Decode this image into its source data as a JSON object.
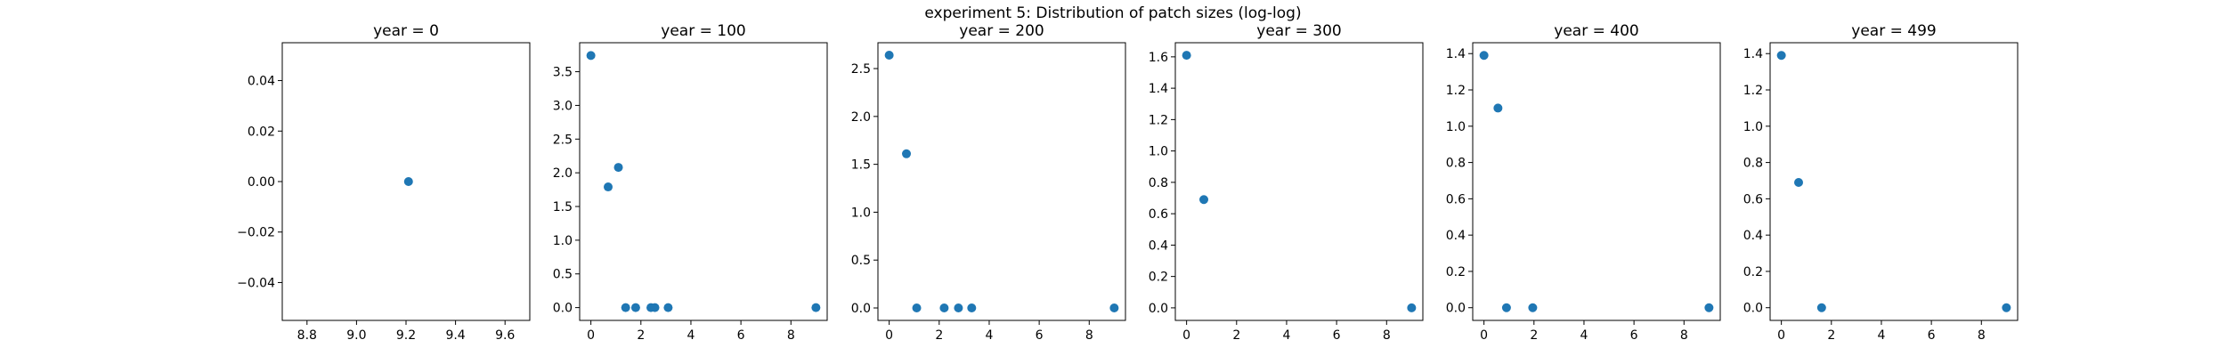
{
  "suptitle": "experiment 5: Distribution of patch sizes (log-log)",
  "colors": {
    "marker": "#1f77b4",
    "axes": "#000000"
  },
  "chart_data": [
    {
      "type": "scatter",
      "title": "year = 0",
      "xlim": [
        8.7,
        9.7
      ],
      "ylim": [
        -0.055,
        0.055
      ],
      "xticks": [
        8.8,
        9.0,
        9.2,
        9.4,
        9.6
      ],
      "xtick_labels": [
        "8.8",
        "9.0",
        "9.2",
        "9.4",
        "9.6"
      ],
      "yticks": [
        -0.04,
        -0.02,
        0.0,
        0.02,
        0.04
      ],
      "ytick_labels": [
        "−0.04",
        "−0.02",
        "0.00",
        "0.02",
        "0.04"
      ],
      "points": [
        [
          9.21,
          0.0
        ]
      ]
    },
    {
      "type": "scatter",
      "title": "year = 100",
      "xlim": [
        -0.45,
        9.45
      ],
      "ylim": [
        -0.19,
        3.93
      ],
      "xticks": [
        0,
        2,
        4,
        6,
        8
      ],
      "xtick_labels": [
        "0",
        "2",
        "4",
        "6",
        "8"
      ],
      "yticks": [
        0.0,
        0.5,
        1.0,
        1.5,
        2.0,
        2.5,
        3.0,
        3.5
      ],
      "ytick_labels": [
        "0.0",
        "0.5",
        "1.0",
        "1.5",
        "2.0",
        "2.5",
        "3.0",
        "3.5"
      ],
      "points": [
        [
          0.0,
          3.74
        ],
        [
          0.69,
          1.79
        ],
        [
          1.1,
          2.08
        ],
        [
          1.39,
          0.0
        ],
        [
          1.79,
          0.0
        ],
        [
          2.4,
          0.0
        ],
        [
          2.56,
          0.0
        ],
        [
          3.09,
          0.0
        ],
        [
          9.0,
          0.0
        ]
      ]
    },
    {
      "type": "scatter",
      "title": "year = 200",
      "xlim": [
        -0.45,
        9.45
      ],
      "ylim": [
        -0.13,
        2.77
      ],
      "xticks": [
        0,
        2,
        4,
        6,
        8
      ],
      "xtick_labels": [
        "0",
        "2",
        "4",
        "6",
        "8"
      ],
      "yticks": [
        0.0,
        0.5,
        1.0,
        1.5,
        2.0,
        2.5
      ],
      "ytick_labels": [
        "0.0",
        "0.5",
        "1.0",
        "1.5",
        "2.0",
        "2.5"
      ],
      "points": [
        [
          0.0,
          2.64
        ],
        [
          0.69,
          1.61
        ],
        [
          1.1,
          0.0
        ],
        [
          2.2,
          0.0
        ],
        [
          2.77,
          0.0
        ],
        [
          3.3,
          0.0
        ],
        [
          9.0,
          0.0
        ]
      ]
    },
    {
      "type": "scatter",
      "title": "year = 300",
      "xlim": [
        -0.45,
        9.45
      ],
      "ylim": [
        -0.08,
        1.69
      ],
      "xticks": [
        0,
        2,
        4,
        6,
        8
      ],
      "xtick_labels": [
        "0",
        "2",
        "4",
        "6",
        "8"
      ],
      "yticks": [
        0.0,
        0.2,
        0.4,
        0.6,
        0.8,
        1.0,
        1.2,
        1.4,
        1.6
      ],
      "ytick_labels": [
        "0.0",
        "0.2",
        "0.4",
        "0.6",
        "0.8",
        "1.0",
        "1.2",
        "1.4",
        "1.6"
      ],
      "points": [
        [
          0.0,
          1.61
        ],
        [
          0.69,
          0.69
        ],
        [
          9.0,
          0.0
        ]
      ]
    },
    {
      "type": "scatter",
      "title": "year = 400",
      "xlim": [
        -0.45,
        9.45
      ],
      "ylim": [
        -0.07,
        1.46
      ],
      "xticks": [
        0,
        2,
        4,
        6,
        8
      ],
      "xtick_labels": [
        "0",
        "2",
        "4",
        "6",
        "8"
      ],
      "yticks": [
        0.0,
        0.2,
        0.4,
        0.6,
        0.8,
        1.0,
        1.2,
        1.4
      ],
      "ytick_labels": [
        "0.0",
        "0.2",
        "0.4",
        "0.6",
        "0.8",
        "1.0",
        "1.2",
        "1.4"
      ],
      "points": [
        [
          0.0,
          1.39
        ],
        [
          0.56,
          1.1
        ],
        [
          0.9,
          0.0
        ],
        [
          1.95,
          0.0
        ],
        [
          9.0,
          0.0
        ]
      ]
    },
    {
      "type": "scatter",
      "title": "year = 499",
      "xlim": [
        -0.45,
        9.45
      ],
      "ylim": [
        -0.07,
        1.46
      ],
      "xticks": [
        0,
        2,
        4,
        6,
        8
      ],
      "xtick_labels": [
        "0",
        "2",
        "4",
        "6",
        "8"
      ],
      "yticks": [
        0.0,
        0.2,
        0.4,
        0.6,
        0.8,
        1.0,
        1.2,
        1.4
      ],
      "ytick_labels": [
        "0.0",
        "0.2",
        "0.4",
        "0.6",
        "0.8",
        "1.0",
        "1.2",
        "1.4"
      ],
      "points": [
        [
          0.0,
          1.39
        ],
        [
          0.69,
          0.69
        ],
        [
          1.61,
          0.0
        ],
        [
          9.0,
          0.0
        ]
      ]
    }
  ]
}
